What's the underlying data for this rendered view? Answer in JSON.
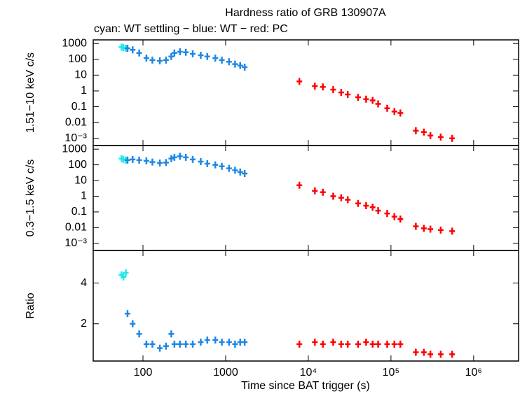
{
  "chart_data": [
    {
      "type": "scatter",
      "title": "Hardness ratio of GRB 130907A",
      "subtitle": "cyan: WT settling − blue: WT − red: PC",
      "y_label": "1.51−10 keV c/s",
      "log_y": true,
      "ylim": [
        0.00035,
        1700
      ],
      "yticks": [
        1000,
        100,
        10,
        1,
        0.1,
        0.01,
        {
          "value": 0.001,
          "label": "10⁻³"
        }
      ],
      "series": [
        {
          "name": "WT settling",
          "color": "#22e6e6",
          "x": [
            55,
            58,
            62
          ],
          "values": [
            600,
            550,
            500
          ]
        },
        {
          "name": "WT",
          "color": "#1e88e5",
          "x": [
            65,
            75,
            90,
            110,
            130,
            160,
            190,
            220,
            240,
            280,
            330,
            400,
            500,
            600,
            750,
            900,
            1100,
            1300,
            1500,
            1700
          ],
          "values": [
            500,
            400,
            250,
            120,
            90,
            80,
            90,
            150,
            250,
            300,
            280,
            220,
            180,
            150,
            120,
            90,
            70,
            50,
            40,
            32
          ]
        },
        {
          "name": "PC",
          "color": "#ff0000",
          "x": [
            7800,
            12000,
            15000,
            20000,
            25000,
            30000,
            40000,
            50000,
            60000,
            70000,
            90000,
            110000,
            130000,
            200000,
            250000,
            300000,
            400000,
            550000
          ],
          "values": [
            4,
            2,
            1.8,
            1.2,
            0.8,
            0.6,
            0.4,
            0.3,
            0.25,
            0.15,
            0.08,
            0.05,
            0.04,
            0.003,
            0.0025,
            0.0015,
            0.0012,
            0.001
          ]
        }
      ]
    },
    {
      "type": "scatter",
      "y_label": "0.3−1.5 keV c/s",
      "log_y": true,
      "ylim": [
        0.00035,
        1700
      ],
      "yticks": [
        1000,
        100,
        10,
        1,
        0.1,
        0.01,
        {
          "value": 0.001,
          "label": "10⁻³"
        }
      ],
      "series": [
        {
          "name": "WT settling",
          "color": "#22e6e6",
          "x": [
            55,
            58,
            62
          ],
          "values": [
            250,
            220,
            200
          ]
        },
        {
          "name": "WT",
          "color": "#1e88e5",
          "x": [
            65,
            75,
            90,
            110,
            130,
            160,
            190,
            220,
            240,
            280,
            330,
            400,
            500,
            600,
            750,
            900,
            1100,
            1300,
            1500,
            1700
          ],
          "values": [
            200,
            220,
            200,
            180,
            150,
            130,
            140,
            250,
            300,
            350,
            300,
            220,
            160,
            120,
            100,
            80,
            60,
            45,
            35,
            28
          ]
        },
        {
          "name": "PC",
          "color": "#ff0000",
          "x": [
            7800,
            12000,
            15000,
            20000,
            25000,
            30000,
            40000,
            50000,
            60000,
            70000,
            90000,
            110000,
            130000,
            200000,
            250000,
            300000,
            400000,
            550000
          ],
          "values": [
            5,
            2.2,
            1.8,
            1.0,
            0.8,
            0.6,
            0.35,
            0.25,
            0.2,
            0.12,
            0.08,
            0.05,
            0.035,
            0.012,
            0.009,
            0.008,
            0.007,
            0.006
          ]
        }
      ]
    },
    {
      "type": "scatter",
      "y_label": "Ratio",
      "x_label": "Time since BAT trigger (s)",
      "log_x": true,
      "log_y": false,
      "xlim": [
        25,
        3500000
      ],
      "xticks": [
        100,
        1000,
        {
          "value": 10000,
          "label": "10⁴"
        },
        {
          "value": 100000,
          "label": "10⁵"
        },
        {
          "value": 1000000,
          "label": "10⁶"
        }
      ],
      "ylim": [
        0.17,
        5.6
      ],
      "yticks": [
        2,
        4
      ],
      "series": [
        {
          "name": "WT settling",
          "color": "#22e6e6",
          "x": [
            55,
            58,
            62
          ],
          "values": [
            4.4,
            4.3,
            4.5
          ]
        },
        {
          "name": "WT",
          "color": "#1e88e5",
          "x": [
            65,
            75,
            90,
            110,
            130,
            160,
            190,
            220,
            240,
            280,
            330,
            400,
            500,
            600,
            750,
            900,
            1100,
            1300,
            1500,
            1700
          ],
          "values": [
            2.5,
            2.0,
            1.5,
            1.0,
            1.0,
            0.8,
            0.9,
            1.5,
            1.0,
            1.0,
            1.0,
            1.0,
            1.1,
            1.2,
            1.2,
            1.1,
            1.1,
            1.0,
            1.1,
            1.1
          ]
        },
        {
          "name": "PC",
          "color": "#ff0000",
          "x": [
            7800,
            12000,
            15000,
            20000,
            25000,
            30000,
            40000,
            50000,
            60000,
            70000,
            90000,
            110000,
            130000,
            200000,
            250000,
            300000,
            400000,
            550000
          ],
          "values": [
            1.0,
            1.1,
            1.0,
            1.1,
            1.0,
            1.0,
            1.0,
            1.1,
            1.0,
            1.0,
            1.0,
            1.0,
            1.0,
            0.6,
            0.6,
            0.5,
            0.5,
            0.5
          ]
        }
      ]
    }
  ]
}
